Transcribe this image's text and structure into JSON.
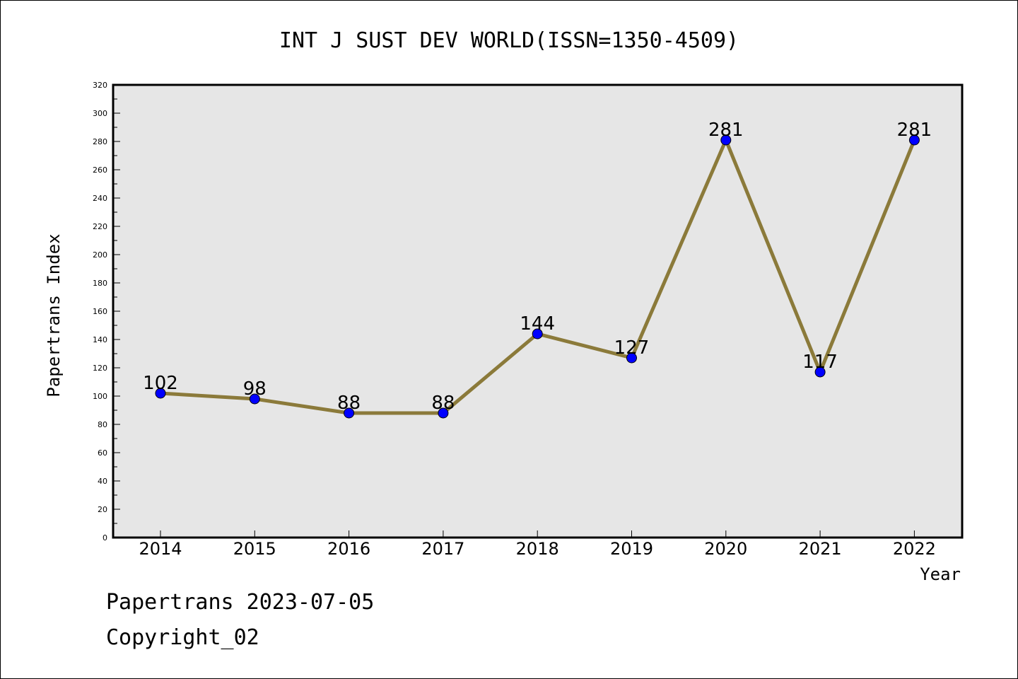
{
  "chart_data": {
    "type": "line",
    "title": "INT J SUST DEV WORLD(ISSN=1350-4509)",
    "xlabel": "Year",
    "ylabel": "Papertrans Index",
    "categories": [
      "2014",
      "2015",
      "2016",
      "2017",
      "2018",
      "2019",
      "2020",
      "2021",
      "2022"
    ],
    "series": [
      {
        "values": [
          102,
          98,
          88,
          88,
          144,
          127,
          281,
          117,
          281
        ]
      }
    ],
    "ylim": [
      0,
      320
    ],
    "yticks": [
      0,
      20,
      40,
      60,
      80,
      100,
      120,
      140,
      160,
      180,
      200,
      220,
      240,
      260,
      280,
      300,
      320
    ],
    "grid": false,
    "data_labels": true,
    "colors": {
      "line": "#8b7a3a",
      "marker": "#0000ff",
      "plot_background": "#e6e6e6"
    }
  },
  "footer": {
    "line1": "Papertrans 2023-07-05",
    "line2": "Copyright_02"
  }
}
